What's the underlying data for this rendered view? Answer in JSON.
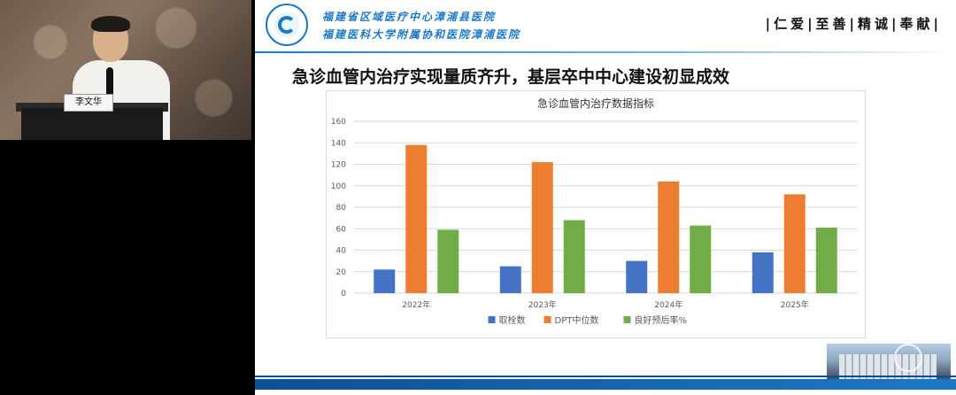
{
  "speaker": {
    "nameplate": "李文华"
  },
  "header": {
    "hospital_name_1": "福建省区域医疗中心漳浦县医院",
    "hospital_name_2": "福建医科大学附属协和医院漳浦医院",
    "motto": "|仁爱|至善|精诚|奉献|"
  },
  "slide": {
    "title": "急诊血管内治疗实现量质齐升，基层卒中中心建设初显成效"
  },
  "chart_data": {
    "type": "bar",
    "title": "急诊血管内治疗数据指标",
    "categories": [
      "2022年",
      "2023年",
      "2024年",
      "2025年"
    ],
    "series": [
      {
        "name": "取栓数",
        "color": "#4472c4",
        "values": [
          22,
          25,
          30,
          38
        ]
      },
      {
        "name": "DPT中位数",
        "color": "#ed7d31",
        "values": [
          138,
          122,
          104,
          92
        ]
      },
      {
        "name": "良好预后率%",
        "color": "#70ad47",
        "values": [
          59,
          68,
          63,
          61
        ]
      }
    ],
    "ylim": [
      0,
      160
    ],
    "yticks": [
      0,
      20,
      40,
      60,
      80,
      100,
      120,
      140,
      160
    ],
    "grid": true,
    "legend_position": "bottom"
  }
}
